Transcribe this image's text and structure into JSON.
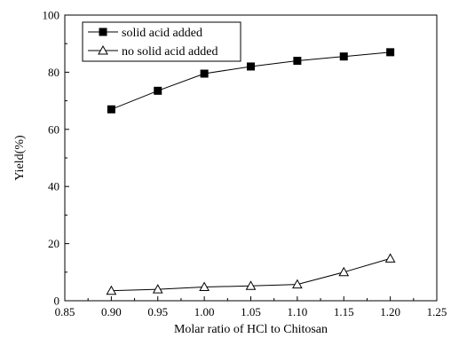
{
  "chart_data": {
    "type": "line",
    "xlabel": "Molar ratio of HCl to Chitosan",
    "ylabel": "Yield(%)",
    "xlim": [
      0.85,
      1.25
    ],
    "ylim": [
      0,
      100
    ],
    "x_ticks": [
      "0.85",
      "0.90",
      "0.95",
      "1.00",
      "1.05",
      "1.10",
      "1.15",
      "1.20",
      "1.25"
    ],
    "y_ticks": [
      "0",
      "20",
      "40",
      "60",
      "80",
      "100"
    ],
    "grid": false,
    "legend_position": "top-left",
    "x": [
      0.9,
      0.95,
      1.0,
      1.05,
      1.1,
      1.15,
      1.2
    ],
    "series": [
      {
        "name": "solid acid added",
        "marker": "filled-square",
        "values": [
          67.0,
          73.5,
          79.5,
          82.0,
          84.0,
          85.5,
          87.0
        ]
      },
      {
        "name": "no solid acid added",
        "marker": "open-triangle",
        "values": [
          3.5,
          4.0,
          4.8,
          5.2,
          5.7,
          10.0,
          14.8
        ]
      }
    ]
  }
}
